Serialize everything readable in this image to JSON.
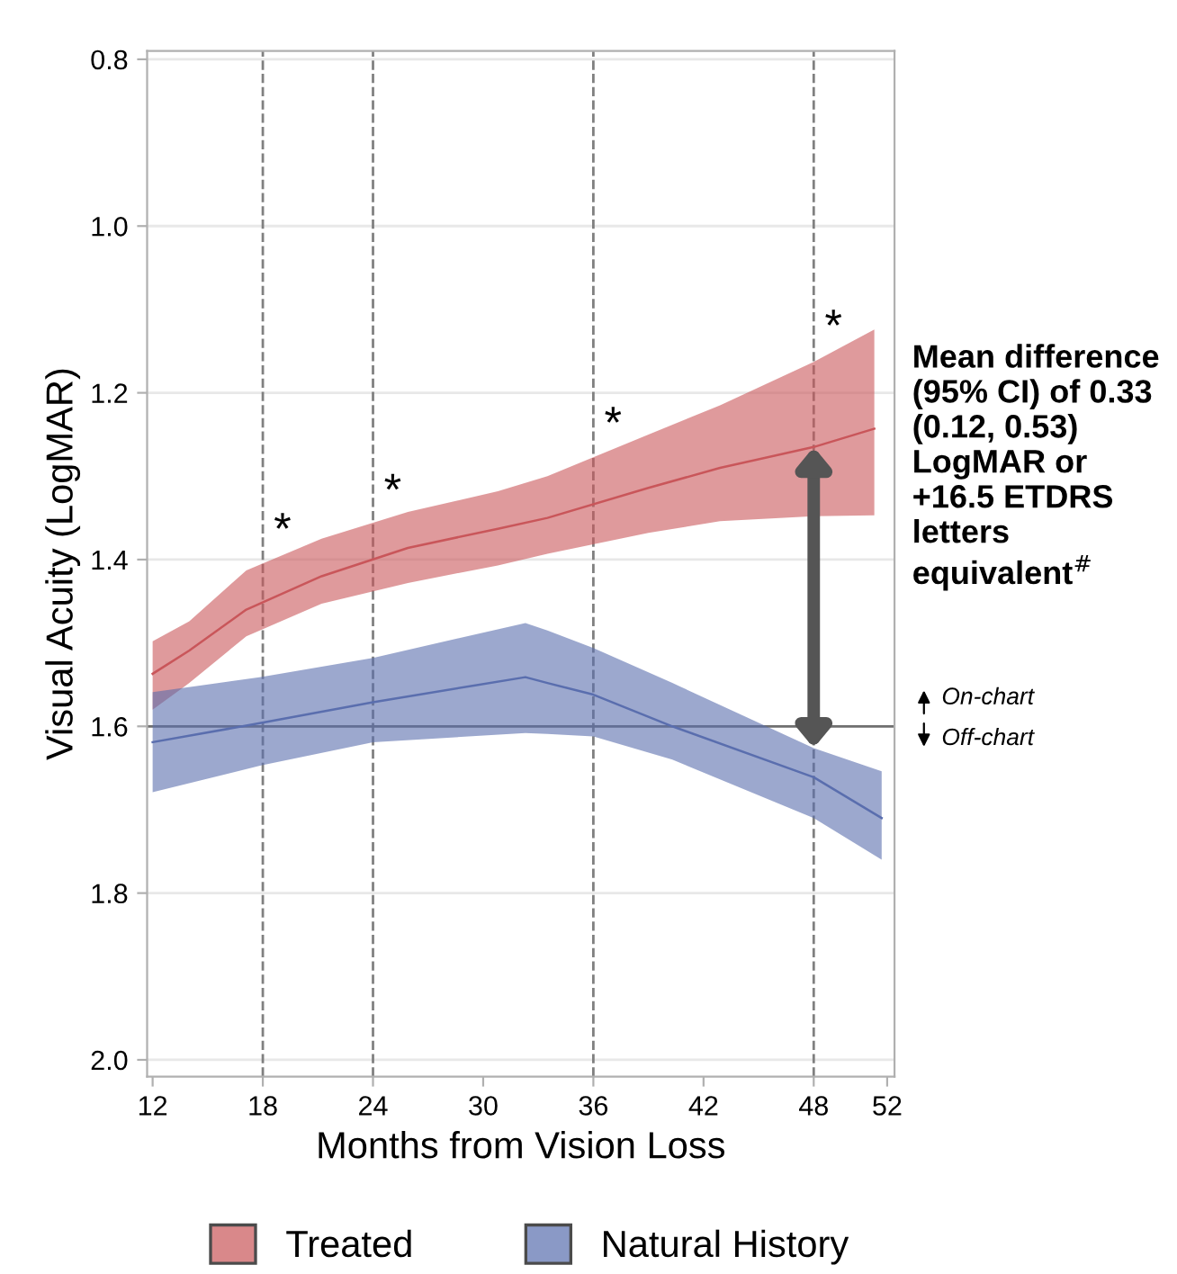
{
  "chart_data": {
    "type": "line",
    "xlabel": "Months from Vision Loss",
    "ylabel": "Visual Acuity (LogMAR)",
    "xlim": [
      11.7,
      52.4
    ],
    "xticks": [
      12,
      18,
      24,
      30,
      36,
      42,
      48,
      52
    ],
    "ylim": [
      2.02,
      0.79
    ],
    "yticks": [
      {
        "value": 0.8,
        "label": "0.8"
      },
      {
        "value": 1.0,
        "label": "1.0"
      },
      {
        "value": 1.2,
        "label": "1.2"
      },
      {
        "value": 1.4,
        "label": "1.4"
      },
      {
        "value": 1.6,
        "label": "1.6"
      },
      {
        "value": 1.8,
        "label": "1.8"
      },
      {
        "value": 2.0,
        "label": "2.0"
      }
    ],
    "grid": "y",
    "legend": "bottom",
    "marker": "none",
    "line_style": "solid",
    "series": [
      {
        "name": "Treated",
        "color": "#c9565a",
        "x": [
          12,
          14.0,
          17.1,
          21.2,
          25.9,
          30.8,
          33.5,
          39.0,
          42.9,
          48,
          51.3
        ],
        "values": [
          1.537,
          1.509,
          1.46,
          1.42,
          1.386,
          1.363,
          1.35,
          1.314,
          1.29,
          1.265,
          1.243
        ],
        "upper": [
          1.498,
          1.474,
          1.413,
          1.375,
          1.343,
          1.318,
          1.3,
          1.25,
          1.215,
          1.163,
          1.124
        ],
        "lower": [
          1.58,
          1.548,
          1.492,
          1.453,
          1.428,
          1.407,
          1.393,
          1.368,
          1.354,
          1.348,
          1.347
        ]
      },
      {
        "name": "Natural History",
        "color": "#5a6eae",
        "x": [
          12,
          17.9,
          24.0,
          32.3,
          33.5,
          36.0,
          40.3,
          48,
          51.7
        ],
        "values": [
          1.619,
          1.596,
          1.571,
          1.541,
          1.548,
          1.562,
          1.6,
          1.661,
          1.71
        ],
        "upper": [
          1.559,
          1.541,
          1.518,
          1.476,
          1.485,
          1.506,
          1.548,
          1.626,
          1.654
        ],
        "lower": [
          1.679,
          1.647,
          1.619,
          1.608,
          1.609,
          1.612,
          1.64,
          1.71,
          1.76
        ]
      }
    ],
    "ref_lines": [
      {
        "axis": "x",
        "value": 18,
        "color": "#808080",
        "line_style": "dashed"
      },
      {
        "axis": "x",
        "value": 24,
        "color": "#808080",
        "line_style": "dashed"
      },
      {
        "axis": "x",
        "value": 36,
        "color": "#808080",
        "line_style": "dashed"
      },
      {
        "axis": "x",
        "value": 48,
        "color": "#808080",
        "line_style": "dashed"
      },
      {
        "axis": "y",
        "value": 1.6,
        "color": "#707070",
        "line_style": "solid"
      }
    ],
    "annotations": [
      "*",
      "*",
      "*",
      "*",
      "Mean difference (95% CI) of 0.33 (0.12, 0.53) LogMAR or +16.5 ETDRS letters equivalent$^{#}$",
      "On-chart",
      "Off-chart"
    ]
  }
}
